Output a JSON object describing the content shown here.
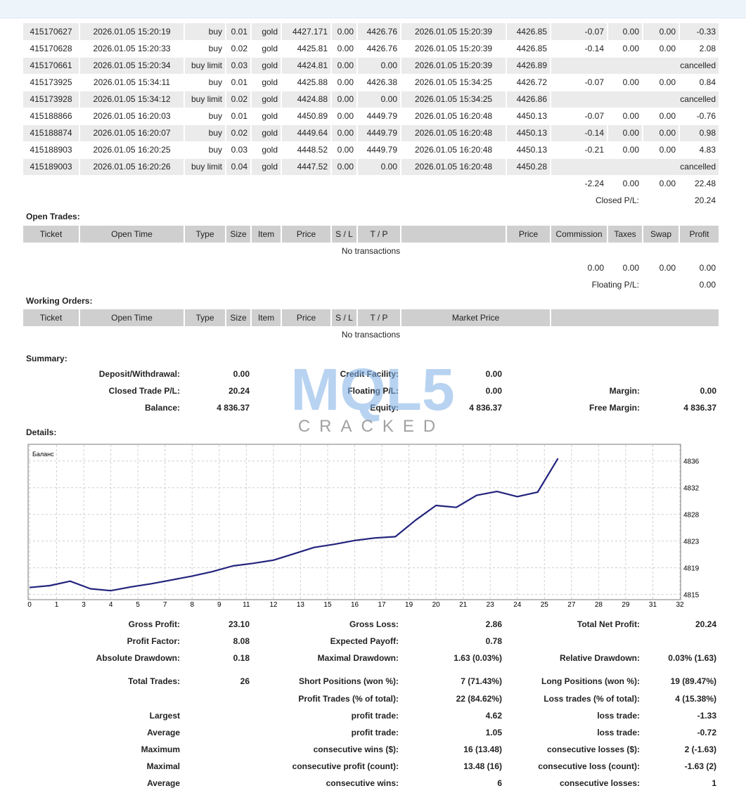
{
  "closed_trades": {
    "rows": [
      [
        "415170627",
        "2026.01.05 15:20:19",
        "buy",
        "0.01",
        "gold",
        "4427.171",
        "0.00",
        "4426.76",
        "2026.01.05 15:20:39",
        "4426.85",
        "-0.07",
        "0.00",
        "0.00",
        "-0.33"
      ],
      [
        "415170628",
        "2026.01.05 15:20:33",
        "buy",
        "0.02",
        "gold",
        "4425.81",
        "0.00",
        "4426.76",
        "2026.01.05 15:20:39",
        "4426.85",
        "-0.14",
        "0.00",
        "0.00",
        "2.08"
      ],
      [
        "415170661",
        "2026.01.05 15:20:34",
        "buy limit",
        "0.03",
        "gold",
        "4424.81",
        "0.00",
        "0.00",
        "2026.01.05 15:20:39",
        "4426.89",
        "cancelled"
      ],
      [
        "415173925",
        "2026.01.05 15:34:11",
        "buy",
        "0.01",
        "gold",
        "4425.88",
        "0.00",
        "4426.38",
        "2026.01.05 15:34:25",
        "4426.72",
        "-0.07",
        "0.00",
        "0.00",
        "0.84"
      ],
      [
        "415173928",
        "2026.01.05 15:34:12",
        "buy limit",
        "0.02",
        "gold",
        "4424.88",
        "0.00",
        "0.00",
        "2026.01.05 15:34:25",
        "4426.86",
        "cancelled"
      ],
      [
        "415188866",
        "2026.01.05 16:20:03",
        "buy",
        "0.01",
        "gold",
        "4450.89",
        "0.00",
        "4449.79",
        "2026.01.05 16:20:48",
        "4450.13",
        "-0.07",
        "0.00",
        "0.00",
        "-0.76"
      ],
      [
        "415188874",
        "2026.01.05 16:20:07",
        "buy",
        "0.02",
        "gold",
        "4449.64",
        "0.00",
        "4449.79",
        "2026.01.05 16:20:48",
        "4450.13",
        "-0.14",
        "0.00",
        "0.00",
        "0.98"
      ],
      [
        "415188903",
        "2026.01.05 16:20:25",
        "buy",
        "0.03",
        "gold",
        "4448.52",
        "0.00",
        "4449.79",
        "2026.01.05 16:20:48",
        "4450.13",
        "-0.21",
        "0.00",
        "0.00",
        "4.83"
      ],
      [
        "415189003",
        "2026.01.05 16:20:26",
        "buy limit",
        "0.04",
        "gold",
        "4447.52",
        "0.00",
        "0.00",
        "2026.01.05 16:20:48",
        "4450.28",
        "cancelled"
      ]
    ],
    "totals": [
      "-2.24",
      "0.00",
      "0.00",
      "22.48"
    ],
    "closed_pl": {
      "label": "Closed P/L:",
      "value": "20.24"
    }
  },
  "open_trades": {
    "title": "Open Trades:",
    "headers_left": [
      "Ticket",
      "Open Time",
      "Type",
      "Size",
      "Item",
      "Price",
      "S / L",
      "T / P"
    ],
    "headers_right": [
      "Price",
      "Commission",
      "Taxes",
      "Swap",
      "Profit"
    ],
    "message": "No transactions",
    "totals": [
      "0.00",
      "0.00",
      "0.00",
      "0.00"
    ],
    "floating_pl": {
      "label": "Floating P/L:",
      "value": "0.00"
    }
  },
  "working_orders": {
    "title": "Working Orders:",
    "headers": [
      "Ticket",
      "Open Time",
      "Type",
      "Size",
      "Item",
      "Price",
      "S / L",
      "T / P"
    ],
    "market_price": "Market Price",
    "message": "No transactions"
  },
  "summary": {
    "title": "Summary:",
    "rows": [
      {
        "l1": "Deposit/Withdrawal:",
        "v1": "0.00",
        "l2": "Credit Facility:",
        "v2": "0.00"
      },
      {
        "l1": "Closed Trade P/L:",
        "v1": "20.24",
        "l2": "Floating P/L:",
        "v2": "0.00",
        "l3": "Margin:",
        "v3": "0.00"
      },
      {
        "l1": "Balance:",
        "v1": "4 836.37",
        "l2": "Equity:",
        "v2": "4 836.37",
        "l3": "Free Margin:",
        "v3": "4 836.37"
      }
    ]
  },
  "details": {
    "title": "Details:"
  },
  "statistics": {
    "rows": [
      {
        "l1": "Gross Profit:",
        "v1": "23.10",
        "l2": "Gross Loss:",
        "v2": "2.86",
        "l3": "Total Net Profit:",
        "v3": "20.24"
      },
      {
        "l1": "Profit Factor:",
        "v1": "8.08",
        "l2": "Expected Payoff:",
        "v2": "0.78"
      },
      {
        "l1": "Absolute Drawdown:",
        "v1": "0.18",
        "l2": "Maximal Drawdown:",
        "v2": "1.63 (0.03%)",
        "l3": "Relative Drawdown:",
        "v3": "0.03% (1.63)"
      },
      {
        "l1": "Total Trades:",
        "v1": "26",
        "l2": "Short Positions (won %):",
        "v2": "7 (71.43%)",
        "l3": "Long Positions (won %):",
        "v3": "19 (89.47%)"
      },
      {
        "l2": "Profit Trades (% of total):",
        "v2": "22 (84.62%)",
        "l3": "Loss trades (% of total):",
        "v3": "4 (15.38%)"
      },
      {
        "l1": "Largest",
        "l2": "profit trade:",
        "v2": "4.62",
        "l3": "loss trade:",
        "v3": "-1.33"
      },
      {
        "l1": "Average",
        "l2": "profit trade:",
        "v2": "1.05",
        "l3": "loss trade:",
        "v3": "-0.72"
      },
      {
        "l1": "Maximum",
        "l2": "consecutive wins ($):",
        "v2": "16 (13.48)",
        "l3": "consecutive losses ($):",
        "v3": "2 (-1.63)"
      },
      {
        "l1": "Maximal",
        "l2": "consecutive profit (count):",
        "v2": "13.48 (16)",
        "l3": "consecutive loss (count):",
        "v3": "-1.63 (2)"
      },
      {
        "l1": "Average",
        "l2": "consecutive wins:",
        "v2": "6",
        "l3": "consecutive losses:",
        "v3": "1"
      }
    ]
  },
  "watermark": {
    "logo": "MQL5",
    "caption": "CRACKED"
  },
  "chart_data": {
    "type": "line",
    "x": [
      0,
      1,
      2,
      3,
      4,
      5,
      6,
      7,
      8,
      9,
      10,
      11,
      12,
      13,
      14,
      15,
      16,
      17,
      18,
      19,
      20,
      21,
      22,
      23,
      24,
      25,
      26
    ],
    "series": [
      {
        "name": "Баланс",
        "color": "#23237d",
        "values": [
          4816.1,
          4816.4,
          4817.1,
          4815.9,
          4815.6,
          4816.2,
          4816.7,
          4817.3,
          4817.9,
          4818.6,
          4819.5,
          4819.9,
          4820.4,
          4821.4,
          4822.4,
          4822.9,
          4823.5,
          4823.9,
          4824.1,
          4826.7,
          4829.0,
          4828.7,
          4830.6,
          4831.2,
          4830.4,
          4831.1,
          4836.4
        ]
      }
    ],
    "xlim": [
      0,
      32
    ],
    "xticks": [
      0,
      {
        "value": 1.333,
        "label": "1"
      },
      {
        "value": 2.667,
        "label": "3"
      },
      4,
      {
        "value": 5.333,
        "label": "5"
      },
      {
        "value": 6.667,
        "label": "7"
      },
      8,
      {
        "value": 9.333,
        "label": "9"
      },
      {
        "value": 10.667,
        "label": "11"
      },
      12,
      {
        "value": 13.333,
        "label": "13"
      },
      {
        "value": 14.667,
        "label": "15"
      },
      16,
      {
        "value": 17.333,
        "label": "17"
      },
      {
        "value": 18.667,
        "label": "19"
      },
      20,
      {
        "value": 21.333,
        "label": "21"
      },
      {
        "value": 22.667,
        "label": "23"
      },
      24,
      {
        "value": 25.333,
        "label": "25"
      },
      {
        "value": 26.667,
        "label": "27"
      },
      28,
      {
        "value": 29.333,
        "label": "29"
      },
      {
        "value": 30.667,
        "label": "31"
      },
      32
    ],
    "ylim": [
      4814.3,
      4838.4
    ],
    "yticks": [
      4815,
      {
        "value": 4819.2,
        "label": "4819"
      },
      {
        "value": 4823.4,
        "label": "4823"
      },
      {
        "value": 4827.6,
        "label": "4828"
      },
      {
        "value": 4831.8,
        "label": "4832"
      },
      4836
    ],
    "grid": true
  }
}
